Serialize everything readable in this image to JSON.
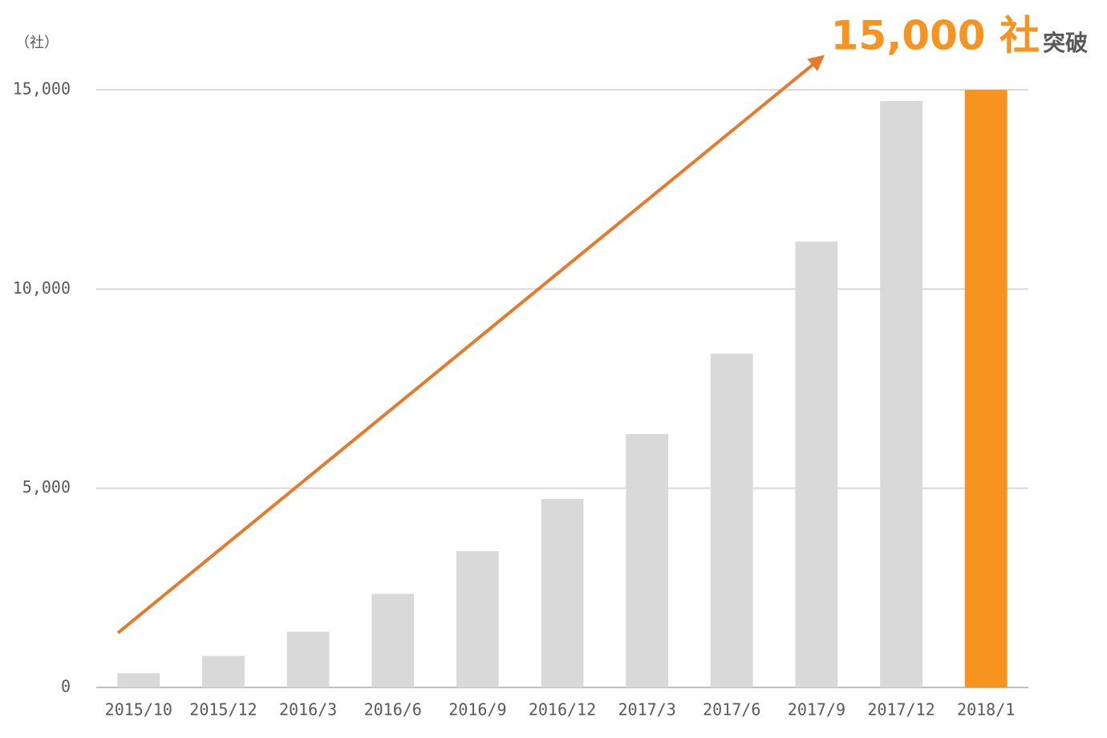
{
  "chart_data": {
    "type": "bar",
    "unit_label": "（社）",
    "annotation": "15,000 社",
    "annotation_suffix": "突破",
    "categories": [
      "2015/10",
      "2015/12",
      "2016/3",
      "2016/6",
      "2016/9",
      "2016/12",
      "2017/3",
      "2017/6",
      "2017/9",
      "2017/12",
      "2018/1"
    ],
    "values": [
      360,
      790,
      1400,
      2350,
      3420,
      4730,
      6360,
      8380,
      11190,
      14720,
      15000
    ],
    "colors": [
      "#d9d9d9",
      "#d9d9d9",
      "#d9d9d9",
      "#d9d9d9",
      "#d9d9d9",
      "#d9d9d9",
      "#d9d9d9",
      "#d9d9d9",
      "#d9d9d9",
      "#d9d9d9",
      "#f7931e"
    ],
    "ylim": [
      0,
      15000
    ],
    "yticks": [
      0,
      {
        "value": 5000,
        "label": "5,000"
      },
      {
        "value": 10000,
        "label": "10,000"
      },
      {
        "value": 15000,
        "label": "15,000"
      }
    ],
    "grid": true
  }
}
